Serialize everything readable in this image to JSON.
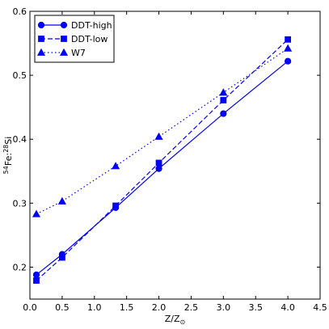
{
  "chart_data": {
    "type": "line",
    "xlabel": "Z/Z",
    "xlabel_sub": "⊙",
    "ylabel_parts": [
      "54",
      "Fe:",
      "28",
      "Si"
    ],
    "xlim": [
      0.0,
      4.5
    ],
    "ylim": [
      0.15,
      0.6
    ],
    "xticks": [
      "0.0",
      "0.5",
      "1.0",
      "1.5",
      "2.0",
      "2.5",
      "3.0",
      "3.5",
      "4.0",
      "4.5"
    ],
    "yticks": [
      "0.2",
      "0.3",
      "0.4",
      "0.5",
      "0.6"
    ],
    "grid": false,
    "legend_position": "top-left",
    "color": "#0000ff",
    "series": [
      {
        "name": "DDT-high",
        "marker": "circle",
        "linestyle": "solid",
        "x": [
          0.1,
          0.5,
          1.33,
          2.0,
          3.0,
          4.0
        ],
        "y": [
          0.188,
          0.22,
          0.293,
          0.354,
          0.44,
          0.522
        ]
      },
      {
        "name": "DDT-low",
        "marker": "square",
        "linestyle": "dashed",
        "x": [
          0.1,
          0.5,
          1.33,
          2.0,
          3.0,
          4.0
        ],
        "y": [
          0.179,
          0.215,
          0.296,
          0.363,
          0.461,
          0.556
        ]
      },
      {
        "name": "W7",
        "marker": "triangle",
        "linestyle": "dotted",
        "x": [
          0.1,
          0.5,
          1.33,
          2.0,
          3.0,
          4.0
        ],
        "y": [
          0.283,
          0.303,
          0.358,
          0.404,
          0.473,
          0.542
        ]
      }
    ]
  }
}
